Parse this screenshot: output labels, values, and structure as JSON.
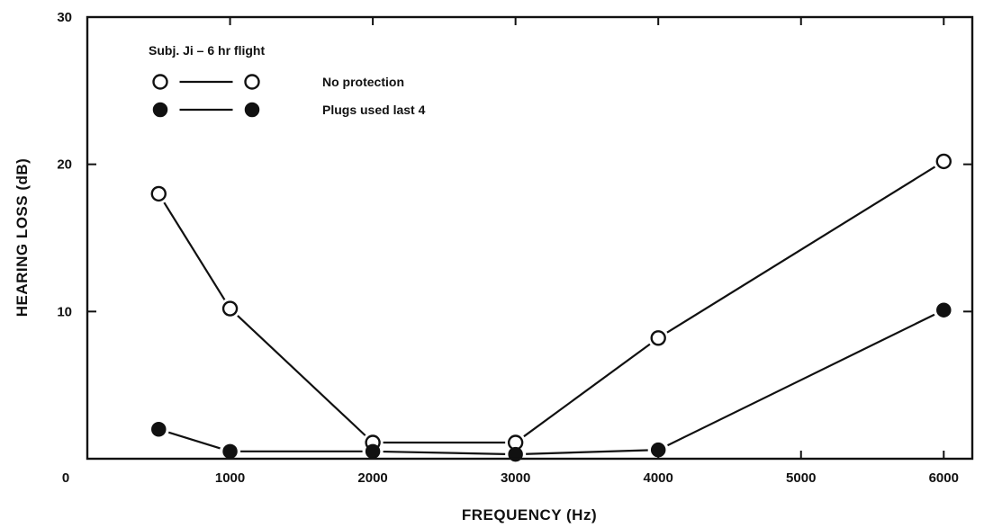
{
  "chart_data": {
    "type": "line",
    "title": "",
    "xlabel": "FREQUENCY (Hz)",
    "ylabel": "HEARING LOSS (dB)",
    "xlim": [
      0,
      6200
    ],
    "ylim": [
      0,
      30
    ],
    "x_ticks": [
      0,
      1000,
      2000,
      3000,
      4000,
      5000,
      6000
    ],
    "x_tick_labels": [
      "0",
      "1000",
      "2000",
      "3000",
      "4000",
      "5000",
      "6000"
    ],
    "y_ticks": [
      10,
      20,
      30
    ],
    "y_tick_labels": [
      "10",
      "20",
      "30"
    ],
    "grid": false,
    "legend": {
      "heading": "Subj. Ji – 6 hr flight",
      "placement": "top-left"
    },
    "series": [
      {
        "name": "No protection",
        "marker": "open-circle",
        "x": [
          500,
          1000,
          2000,
          3000,
          4000,
          6000
        ],
        "y": [
          18,
          10.2,
          1.1,
          1.1,
          8.2,
          20.2
        ]
      },
      {
        "name": "Plugs used last 4",
        "marker": "filled-circle",
        "x": [
          500,
          1000,
          2000,
          3000,
          4000,
          6000
        ],
        "y": [
          2,
          0.5,
          0.5,
          0.3,
          0.6,
          10.1
        ]
      }
    ]
  }
}
